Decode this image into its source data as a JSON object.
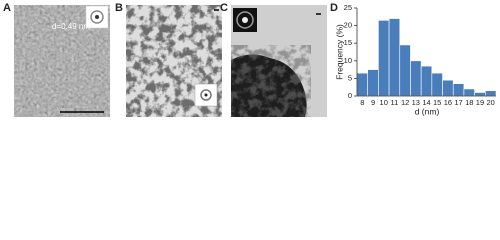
{
  "panels": [
    {
      "label": "A",
      "annotation": "d=0.49 nm"
    },
    {
      "label": "B"
    },
    {
      "label": "C"
    }
  ],
  "chart_data": {
    "type": "bar",
    "panel_label": "D",
    "x_label": "d (nm)",
    "y_label": "Frequency (%)",
    "categories": [
      "8",
      "9",
      "10",
      "11",
      "12",
      "13",
      "14",
      "15",
      "16",
      "17",
      "18",
      "19",
      "20"
    ],
    "values": [
      6.5,
      7.5,
      21.5,
      22,
      14.5,
      10,
      8.5,
      6.5,
      4.5,
      3.5,
      2,
      1,
      1.5
    ],
    "color": "#4a7ebb",
    "ylim": [
      0,
      25
    ],
    "yticks": [
      0,
      5,
      10,
      15,
      20,
      25
    ]
  }
}
